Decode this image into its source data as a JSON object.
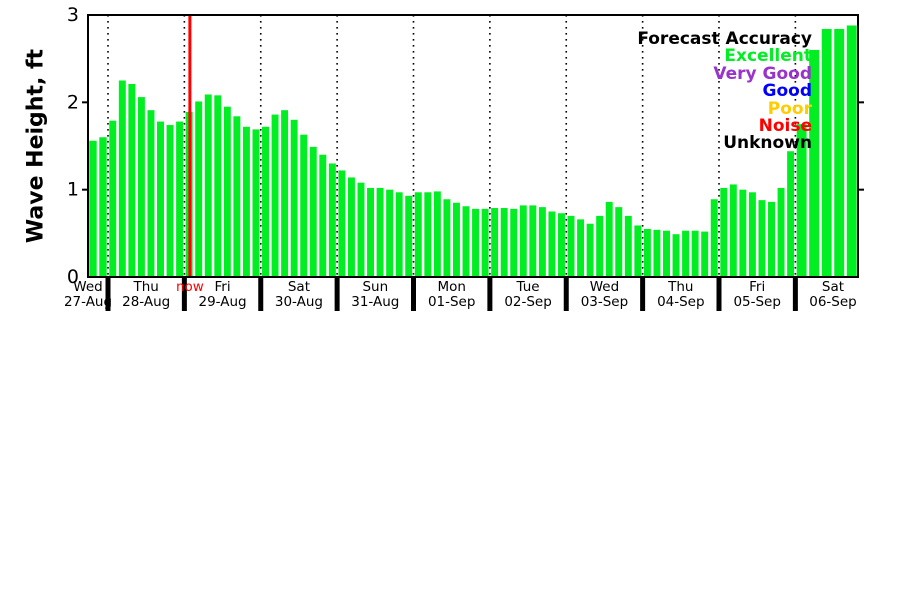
{
  "page": {
    "background": "#ffffff"
  },
  "chart_data": {
    "type": "bar",
    "title": "",
    "ylabel": "Wave Height, ft",
    "ylim": [
      0,
      3
    ],
    "yticks": [
      "0",
      "1",
      "2",
      "3"
    ],
    "grid": "vertical dotted lines at each day boundary",
    "legend_position": "top-right inside plot",
    "bar_color": "#00ee22",
    "frame_color": "#000000",
    "now_marker": {
      "label": "now",
      "color": "#ff0000",
      "at_date": "29-Aug"
    },
    "days": [
      {
        "day": "Wed",
        "date": "27-Aug",
        "values": [
          1.56,
          1.6
        ]
      },
      {
        "day": "Thu",
        "date": "28-Aug",
        "values": [
          1.79,
          2.25,
          2.21,
          2.06,
          1.91,
          1.78,
          1.74,
          1.78
        ]
      },
      {
        "day": "Fri",
        "date": "29-Aug",
        "values": [
          1.89,
          2.01,
          2.09,
          2.08,
          1.95,
          1.84,
          1.72,
          1.69
        ]
      },
      {
        "day": "Sat",
        "date": "30-Aug",
        "values": [
          1.72,
          1.86,
          1.91,
          1.8,
          1.63,
          1.49,
          1.4,
          1.3
        ]
      },
      {
        "day": "Sun",
        "date": "31-Aug",
        "values": [
          1.22,
          1.14,
          1.08,
          1.02,
          1.02,
          1.0,
          0.97,
          0.93
        ]
      },
      {
        "day": "Mon",
        "date": "01-Sep",
        "values": [
          0.97,
          0.97,
          0.98,
          0.89,
          0.85,
          0.81,
          0.78,
          0.78
        ]
      },
      {
        "day": "Tue",
        "date": "02-Sep",
        "values": [
          0.79,
          0.79,
          0.78,
          0.82,
          0.82,
          0.8,
          0.75,
          0.73
        ]
      },
      {
        "day": "Wed",
        "date": "03-Sep",
        "values": [
          0.7,
          0.66,
          0.61,
          0.7,
          0.86,
          0.8,
          0.7,
          0.59
        ]
      },
      {
        "day": "Thu",
        "date": "04-Sep",
        "values": [
          0.55,
          0.54,
          0.53,
          0.49,
          0.53,
          0.53,
          0.52,
          0.89
        ]
      },
      {
        "day": "Fri",
        "date": "05-Sep",
        "values": [
          1.02,
          1.06,
          1.0,
          0.97,
          0.88,
          0.86,
          1.02,
          1.44
        ]
      },
      {
        "day": "Sat",
        "date": "06-Sep",
        "values": [
          1.75,
          2.6,
          2.84,
          2.84,
          2.88
        ]
      }
    ],
    "legend": {
      "title": "Forecast Accuracy",
      "entries": [
        {
          "label": "Excellent",
          "color": "#00ee22"
        },
        {
          "label": "Very Good",
          "color": "#9933cc"
        },
        {
          "label": "Good",
          "color": "#0000ff"
        },
        {
          "label": "Poor",
          "color": "#ffcc00"
        },
        {
          "label": "Noise",
          "color": "#ff0000"
        },
        {
          "label": "Unknown",
          "color": "#000000"
        }
      ]
    }
  }
}
